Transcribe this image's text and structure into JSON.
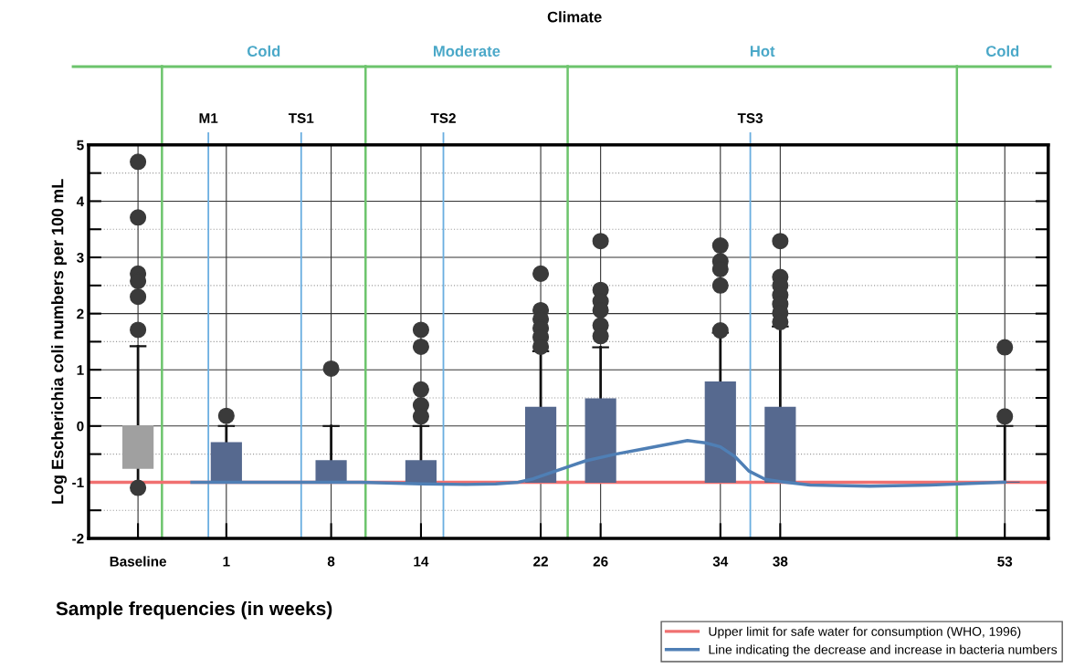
{
  "chart_data": {
    "type": "box",
    "xlabel": "Sample frequencies (in weeks)",
    "ylabel": "Log Escherichia coli numbers per 100 mL",
    "x": [
      -4.9,
      1,
      8,
      14,
      22,
      26,
      34,
      38,
      53
    ],
    "colors": [
      "#a0a0a0",
      "#56698f",
      "#56698f",
      "#56698f",
      "#56698f",
      "#56698f",
      "#56698f",
      "#56698f",
      "#56698f"
    ],
    "boxes": [
      {
        "low": -1,
        "q1": -0.75,
        "median": -0.75,
        "q3": 0,
        "high": 1.42,
        "outliers": [
          4.7,
          3.71,
          2.71,
          2.58,
          2.3,
          1.71,
          -1.1
        ]
      },
      {
        "low": -1,
        "q1": -1,
        "median": -1,
        "q3": -0.3,
        "high": 0,
        "outliers": [
          0.18
        ]
      },
      {
        "low": -1,
        "q1": -1,
        "median": -1,
        "q3": -0.62,
        "high": 0,
        "outliers": [
          1.02
        ]
      },
      {
        "low": -1,
        "q1": -1,
        "median": -1,
        "q3": -0.62,
        "high": 0,
        "outliers": [
          1.71,
          1.41,
          0.65,
          0.37,
          0.17
        ]
      },
      {
        "low": -1,
        "q1": -1,
        "median": -0.62,
        "q3": 0.33,
        "high": 1.33,
        "outliers": [
          2.71,
          2.06,
          1.9,
          1.74,
          1.58,
          1.41
        ]
      },
      {
        "low": -1,
        "q1": -1,
        "median": -1,
        "q3": 0.48,
        "high": 1.4,
        "outliers": [
          3.29,
          2.42,
          2.22,
          2.06,
          1.79,
          1.6
        ]
      },
      {
        "low": -1,
        "q1": -1,
        "median": -0.33,
        "q3": 0.78,
        "high": 1.66,
        "outliers": [
          3.21,
          2.93,
          2.79,
          2.5,
          1.7
        ]
      },
      {
        "low": -1,
        "q1": -1,
        "median": -1,
        "q3": 0.33,
        "high": 1.77,
        "outliers": [
          3.29,
          2.65,
          2.5,
          2.33,
          2.17,
          2.01,
          1.85
        ]
      },
      {
        "low": -1,
        "q1": -1,
        "median": -1,
        "q3": -1,
        "high": 0,
        "outliers": [
          1.4,
          0.17
        ]
      }
    ],
    "series": [
      {
        "type": "line",
        "name": "Line indicating the decrease and increase in bacteria numbers",
        "color": "#4f7fb5",
        "marker": "none",
        "x": [
          -1.3,
          5,
          10,
          14,
          17,
          19,
          20.5,
          21.5,
          23,
          25,
          27,
          29,
          31.8,
          33,
          34,
          35,
          35.9,
          37,
          38,
          40,
          44,
          48,
          53
        ],
        "values": [
          -1,
          -1,
          -1,
          -1.03,
          -1.04,
          -1.03,
          -1,
          -0.94,
          -0.8,
          -0.62,
          -0.5,
          -0.4,
          -0.26,
          -0.3,
          -0.37,
          -0.55,
          -0.8,
          -0.95,
          -0.99,
          -1.05,
          -1.07,
          -1.05,
          -1
        ]
      }
    ],
    "xlim": [
      -8.2,
      55.9
    ],
    "xticks": [
      {
        "value": -4.9,
        "label": "Baseline"
      },
      1,
      8,
      14,
      22,
      26,
      34,
      38,
      53
    ],
    "ylim": [
      -2,
      5
    ],
    "yticks": [
      -2,
      {
        "value": -1.5,
        "label": null
      },
      -1,
      {
        "value": -0.5,
        "label": null
      },
      0,
      {
        "value": 0.5,
        "label": null
      },
      1,
      {
        "value": 1.5,
        "label": null
      },
      2,
      {
        "value": 2.5,
        "label": null
      },
      3,
      {
        "value": 3.5,
        "label": null
      },
      4,
      {
        "value": 4.5,
        "label": null
      },
      5
    ],
    "ref_lines": [
      {
        "axis": "y",
        "value": -1,
        "label": "Upper limit for safe water for consumption (WHO, 1996)",
        "color": "#f07070"
      },
      {
        "axis": "x",
        "value": -0.2,
        "label": "M1",
        "color": "#6aaee0"
      },
      {
        "axis": "x",
        "value": 6,
        "label": "TS1",
        "color": "#6aaee0"
      },
      {
        "axis": "x",
        "value": 15.5,
        "label": "TS2",
        "color": "#6aaee0"
      },
      {
        "axis": "x",
        "value": 36,
        "label": "TS3",
        "color": "#6aaee0"
      },
      {
        "axis": "x",
        "value": -3.3,
        "color": "#6cc46c"
      },
      {
        "axis": "x",
        "value": 10.3,
        "color": "#6cc46c"
      },
      {
        "axis": "x",
        "value": 23.8,
        "color": "#6cc46c"
      },
      {
        "axis": "x",
        "value": 49.8,
        "color": "#6cc46c"
      }
    ],
    "annotations": [
      "Climate",
      "Cold",
      "Moderate",
      "Hot",
      "Cold"
    ],
    "grid": true,
    "legend": "bottom right",
    "marker": "circle"
  }
}
